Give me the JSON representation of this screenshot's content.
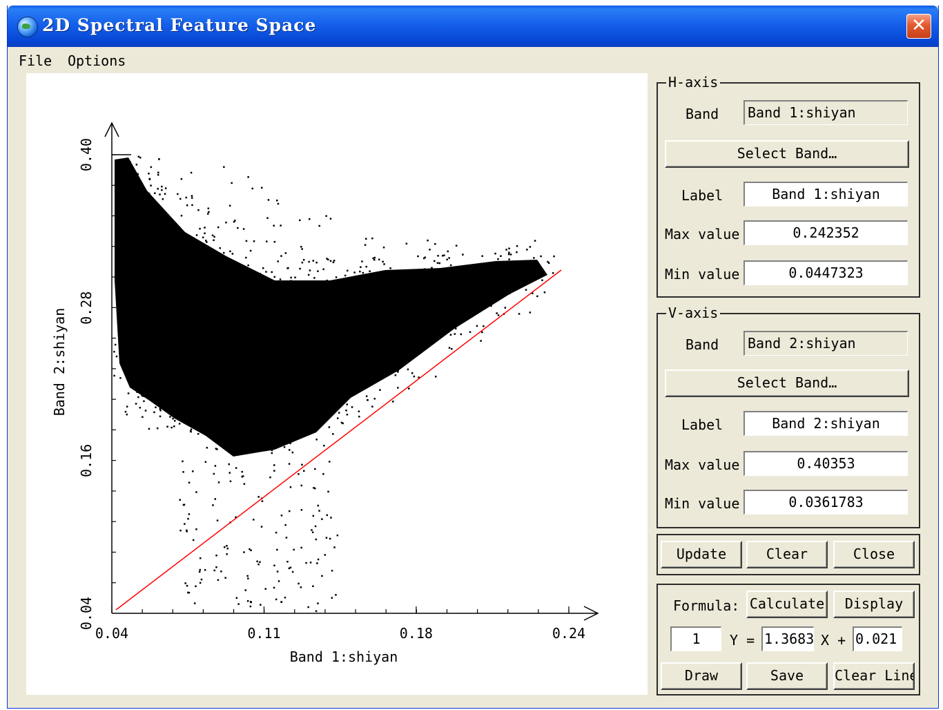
{
  "window": {
    "title": "2D Spectral Feature Space",
    "close_glyph": "✕",
    "icon": "globe-icon"
  },
  "menu": {
    "file": "File",
    "options": "Options"
  },
  "chart_data": {
    "type": "scatter",
    "xlabel": "Band 1:shiyan",
    "ylabel": "Band 2:shiyan",
    "x_ticks": [
      "0.04",
      "0.11",
      "0.18",
      "0.24"
    ],
    "y_ticks": [
      "0.04",
      "0.16",
      "0.28",
      "0.40"
    ],
    "xlim": [
      0.04,
      0.24
    ],
    "ylim": [
      0.04,
      0.4
    ],
    "point_color": "#000000",
    "line_color": "#ff0000",
    "fit_line": {
      "slope": 1.3683,
      "intercept": 0.021
    },
    "point_cloud": "dense black scatter, triangular/V-shaped spread from upper-left to upper-right above the red line"
  },
  "h_axis": {
    "legend": "H-axis",
    "band_label": "Band",
    "band_value": "Band 1:shiyan",
    "select_button": "Select Band…",
    "label_label": "Label",
    "label_value": "Band 1:shiyan",
    "max_label": "Max value",
    "max_value": "0.242352",
    "min_label": "Min value",
    "min_value": "0.0447323"
  },
  "v_axis": {
    "legend": "V-axis",
    "band_label": "Band",
    "band_value": "Band 2:shiyan",
    "select_button": "Select Band…",
    "label_label": "Label",
    "label_value": "Band 2:shiyan",
    "max_label": "Max value",
    "max_value": "0.40353",
    "min_label": "Min value",
    "min_value": "0.0361783"
  },
  "actions": {
    "update": "Update",
    "clear": "Clear",
    "close": "Close"
  },
  "formula": {
    "label": "Formula:",
    "calculate": "Calculate",
    "display": "Display",
    "index": "1",
    "y_eq": "Y =",
    "slope": "1.3683",
    "x_plus": "X +",
    "intercept": "0.021",
    "draw": "Draw",
    "save": "Save",
    "clear_line": "Clear Line"
  }
}
